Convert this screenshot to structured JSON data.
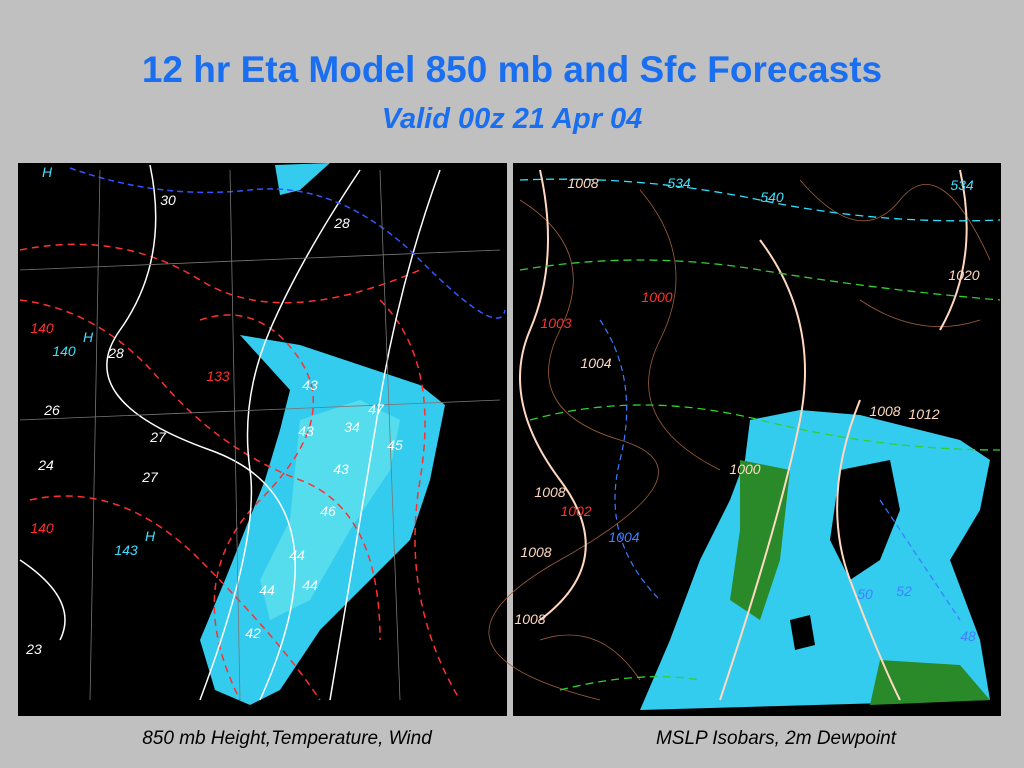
{
  "header": {
    "title": "12 hr Eta Model 850 mb and Sfc Forecasts",
    "subtitle": "Valid 00z 21 Apr 04"
  },
  "left_map": {
    "caption": "850 mb Height,Temperature, Wind",
    "labels": [
      "H",
      "30",
      "28",
      "140",
      "140",
      "28",
      "H",
      "133",
      "26",
      "27",
      "24",
      "27",
      "140",
      "143",
      "H",
      "23",
      "43",
      "47",
      "34",
      "43",
      "45",
      "43",
      "46",
      "44",
      "44",
      "44",
      "42"
    ]
  },
  "right_map": {
    "caption": "MSLP Isobars, 2m Dewpoint",
    "labels": [
      "1008",
      "534",
      "540",
      "534",
      "1020",
      "1000",
      "1003",
      "1004",
      "1008",
      "1012",
      "1000",
      "1008",
      "1002",
      "1004",
      "1008",
      "1008",
      "50",
      "52",
      "48"
    ]
  }
}
